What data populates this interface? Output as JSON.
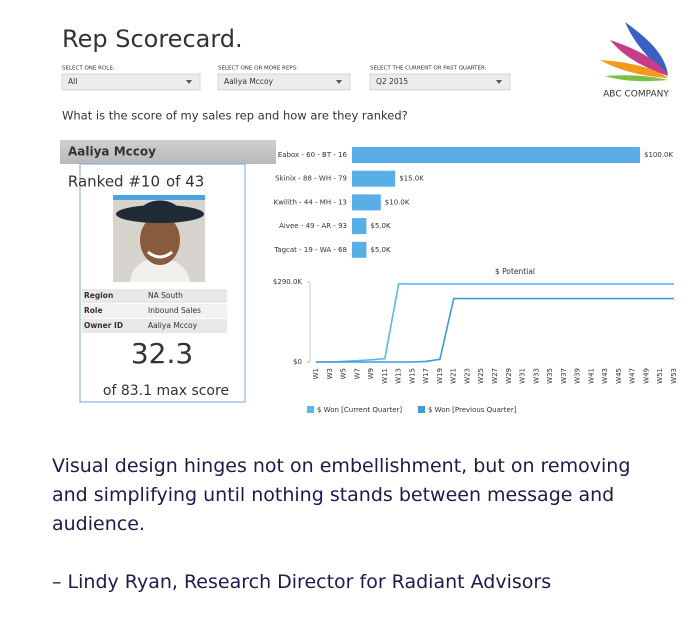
{
  "header": {
    "title": "Rep Scorecard."
  },
  "filters": [
    {
      "label": "SELECT ONE ROLE:",
      "value": "All"
    },
    {
      "label": "SELECT ONE OR MORE REPS:",
      "value": "Aaliya Mccoy"
    },
    {
      "label": "SELECT THE CURRENT OR PAST QUARTER:",
      "value": "Q2 2015"
    }
  ],
  "logo": {
    "text": "ABC COMPANY"
  },
  "question": "What is the score of my sales rep and how are they ranked?",
  "rep": {
    "name": "Aaliya Mccoy",
    "rank": "Ranked #10",
    "of": "of 43",
    "details": [
      [
        "Region",
        "NA South"
      ],
      [
        "Role",
        "Inbound Sales"
      ],
      [
        "Owner ID",
        "Aaliya Mccoy"
      ]
    ],
    "score": "32.3",
    "max": "of 83.1 max score"
  },
  "chart_data": [
    {
      "type": "bar",
      "orientation": "horizontal",
      "color": "#5aaee8",
      "categories": [
        "Eabox - 60 - BT - 16",
        "Skinix - 88 - WH - 79",
        "Kwilith - 44 - MH - 13",
        "Aivee - 49 - AR - 93",
        "Tagcat - 19 - WA - 68"
      ],
      "values": [
        100,
        15,
        10,
        5,
        5
      ],
      "value_labels": [
        "$100.0K",
        "$15.0K",
        "$10.0K",
        "$5.0K",
        "$5.0K"
      ],
      "xlim": [
        0,
        100
      ]
    },
    {
      "type": "line",
      "title": "$ Potential",
      "categories": [
        "W1",
        "W3",
        "W5",
        "W7",
        "W9",
        "W11",
        "W13",
        "W15",
        "W17",
        "W19",
        "W21",
        "W23",
        "W25",
        "W27",
        "W29",
        "W31",
        "W33",
        "W35",
        "W37",
        "W39",
        "W41",
        "W43",
        "W45",
        "W47",
        "W49",
        "W51",
        "W53"
      ],
      "series": [
        {
          "name": "$ Won [Current Quarter]",
          "color": "#5ab8ee",
          "values": [
            0,
            0,
            2,
            5,
            8,
            12,
            283,
            283,
            283,
            283,
            283,
            283,
            283,
            283,
            283,
            283,
            283,
            283,
            283,
            283,
            283,
            283,
            283,
            283,
            283,
            283,
            283
          ]
        },
        {
          "name": "$ Won [Previous Quarter]",
          "color": "#3f9ad8",
          "values": [
            0,
            0,
            0,
            0,
            0,
            0,
            0,
            0,
            2,
            10,
            230,
            230,
            230,
            230,
            230,
            230,
            230,
            230,
            230,
            230,
            230,
            230,
            230,
            230,
            230,
            230,
            230
          ]
        }
      ],
      "ylim": [
        0,
        290
      ],
      "yticks": [
        {
          "value": 0,
          "label": "$0"
        },
        {
          "value": 290,
          "label": "$290.0K"
        }
      ]
    }
  ],
  "quote": {
    "text": "Visual design hinges not on embellishment, but on removing and simplifying until nothing stands between message and audience.",
    "attribution": "– Lindy Ryan, Research Director for Radiant Advisors"
  }
}
